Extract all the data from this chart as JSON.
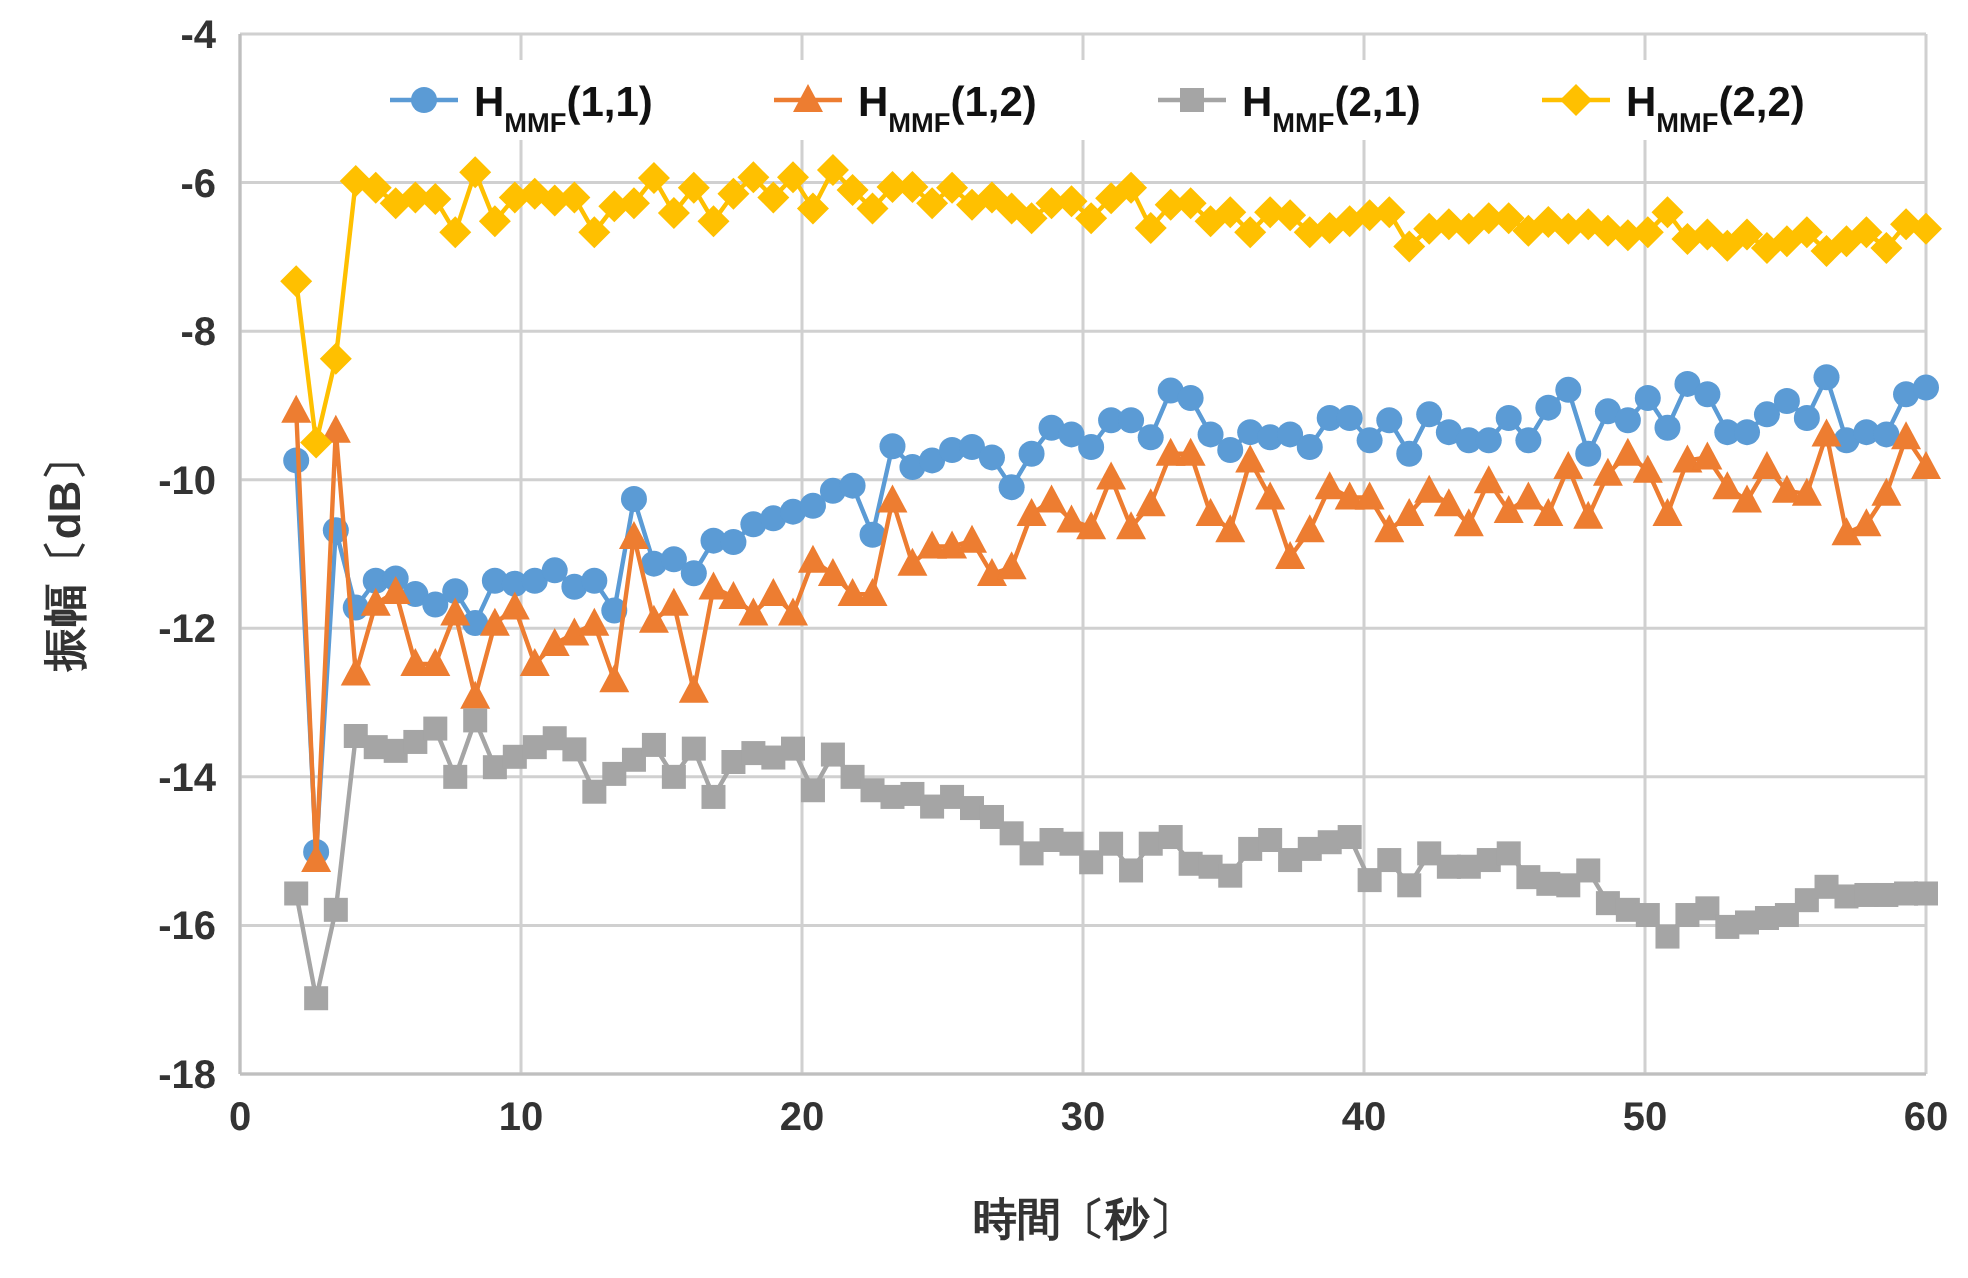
{
  "chart_data": {
    "type": "line",
    "xlabel": "時間〔秒〕",
    "ylabel": "振幅〔dB〕",
    "xlim": [
      0,
      60
    ],
    "xticks": [
      0,
      10,
      20,
      30,
      40,
      50,
      60
    ],
    "ylim": [
      -18,
      -4
    ],
    "yticks": [
      -18,
      -16,
      -14,
      -12,
      -10,
      -8,
      -6,
      -4
    ],
    "grid": true,
    "legend": "top right",
    "line_style": "solid",
    "x": [
      2.0,
      2.71,
      3.41,
      4.12,
      4.83,
      5.54,
      6.24,
      6.95,
      7.66,
      8.37,
      9.07,
      9.78,
      10.49,
      11.2,
      11.9,
      12.61,
      13.32,
      14.02,
      14.73,
      15.44,
      16.15,
      16.85,
      17.56,
      18.27,
      18.98,
      19.68,
      20.39,
      21.1,
      21.8,
      22.51,
      23.22,
      23.93,
      24.63,
      25.34,
      26.05,
      26.76,
      27.46,
      28.17,
      28.88,
      29.59,
      30.29,
      31.0,
      31.71,
      32.41,
      33.12,
      33.83,
      34.54,
      35.24,
      35.95,
      36.66,
      37.37,
      38.07,
      38.78,
      39.49,
      40.2,
      40.9,
      41.61,
      42.32,
      43.02,
      43.73,
      44.44,
      45.15,
      45.85,
      46.56,
      47.27,
      47.98,
      48.68,
      49.39,
      50.1,
      50.8,
      51.51,
      52.22,
      52.93,
      53.63,
      54.34,
      55.05,
      55.76,
      56.46,
      57.17,
      57.88,
      58.59,
      59.29,
      60.0
    ],
    "series": [
      {
        "name": "H$_{MMF}$(1,1)",
        "color": "#5b9bd5",
        "marker": "circle",
        "values": [
          -9.74,
          -15.01,
          -10.68,
          -11.72,
          -11.36,
          -11.33,
          -11.54,
          -11.68,
          -11.5,
          -11.93,
          -11.36,
          -11.4,
          -11.36,
          -11.22,
          -11.44,
          -11.36,
          -11.76,
          -10.26,
          -11.13,
          -11.07,
          -11.26,
          -10.82,
          -10.84,
          -10.6,
          -10.52,
          -10.43,
          -10.35,
          -10.15,
          -10.08,
          -10.74,
          -9.55,
          -9.83,
          -9.74,
          -9.6,
          -9.56,
          -9.7,
          -10.1,
          -9.65,
          -9.3,
          -9.39,
          -9.56,
          -9.2,
          -9.2,
          -9.43,
          -8.8,
          -8.9,
          -9.39,
          -9.6,
          -9.36,
          -9.43,
          -9.39,
          -9.56,
          -9.17,
          -9.17,
          -9.47,
          -9.2,
          -9.65,
          -9.12,
          -9.36,
          -9.47,
          -9.47,
          -9.17,
          -9.47,
          -9.03,
          -8.79,
          -9.65,
          -9.08,
          -9.2,
          -8.9,
          -9.3,
          -8.71,
          -8.85,
          -9.36,
          -9.36,
          -9.12,
          -8.94,
          -9.17,
          -8.62,
          -9.47,
          -9.36,
          -9.39,
          -8.85,
          -8.76
        ]
      },
      {
        "name": "H$_{MMF}$(1,2)",
        "color": "#ed7d31",
        "marker": "triangle",
        "values": [
          -9.07,
          -15.12,
          -9.34,
          -12.61,
          -11.67,
          -11.51,
          -12.48,
          -12.48,
          -11.8,
          -12.92,
          -11.94,
          -11.72,
          -12.48,
          -12.21,
          -12.07,
          -11.94,
          -12.7,
          -10.77,
          -11.9,
          -11.67,
          -12.84,
          -11.45,
          -11.58,
          -11.8,
          -11.54,
          -11.8,
          -11.09,
          -11.27,
          -11.54,
          -11.54,
          -10.28,
          -11.13,
          -10.9,
          -10.9,
          -10.82,
          -11.27,
          -11.18,
          -10.46,
          -10.28,
          -10.55,
          -10.64,
          -9.97,
          -10.64,
          -10.33,
          -9.65,
          -9.65,
          -10.46,
          -10.68,
          -9.74,
          -10.24,
          -11.04,
          -10.68,
          -10.1,
          -10.24,
          -10.24,
          -10.68,
          -10.46,
          -10.15,
          -10.33,
          -10.6,
          -10.02,
          -10.42,
          -10.24,
          -10.46,
          -9.83,
          -10.5,
          -9.92,
          -9.65,
          -9.88,
          -10.46,
          -9.74,
          -9.7,
          -10.1,
          -10.28,
          -9.83,
          -10.15,
          -10.19,
          -9.39,
          -10.72,
          -10.6,
          -10.19,
          -9.43,
          -9.83
        ]
      },
      {
        "name": "H$_{MMF}$(2,1)",
        "color": "#a5a5a5",
        "marker": "square",
        "values": [
          -15.57,
          -16.98,
          -15.79,
          -13.45,
          -13.6,
          -13.65,
          -13.53,
          -13.35,
          -14.0,
          -13.24,
          -13.87,
          -13.73,
          -13.6,
          -13.48,
          -13.63,
          -14.2,
          -13.96,
          -13.77,
          -13.57,
          -14.0,
          -13.62,
          -14.27,
          -13.8,
          -13.68,
          -13.74,
          -13.62,
          -14.18,
          -13.7,
          -14.0,
          -14.18,
          -14.27,
          -14.23,
          -14.4,
          -14.27,
          -14.42,
          -14.54,
          -14.76,
          -15.03,
          -14.85,
          -14.9,
          -15.15,
          -14.9,
          -15.26,
          -14.9,
          -14.81,
          -15.17,
          -15.21,
          -15.33,
          -14.97,
          -14.85,
          -15.12,
          -14.97,
          -14.88,
          -14.81,
          -15.39,
          -15.12,
          -15.46,
          -15.03,
          -15.21,
          -15.21,
          -15.12,
          -15.03,
          -15.35,
          -15.44,
          -15.46,
          -15.26,
          -15.7,
          -15.79,
          -15.86,
          -16.15,
          -15.86,
          -15.77,
          -16.02,
          -15.96,
          -15.9,
          -15.86,
          -15.66,
          -15.48,
          -15.61,
          -15.59,
          -15.59,
          -15.57,
          -15.57
        ]
      },
      {
        "name": "H$_{MMF}$(2,2)",
        "color": "#ffc000",
        "marker": "diamond",
        "values": [
          -7.33,
          -9.5,
          -8.37,
          -5.98,
          -6.07,
          -6.28,
          -6.2,
          -6.22,
          -6.67,
          -5.86,
          -6.52,
          -6.2,
          -6.15,
          -6.24,
          -6.2,
          -6.67,
          -6.32,
          -6.28,
          -5.94,
          -6.41,
          -6.07,
          -6.52,
          -6.15,
          -5.93,
          -6.2,
          -5.93,
          -6.35,
          -5.83,
          -6.1,
          -6.35,
          -6.06,
          -6.06,
          -6.28,
          -6.07,
          -6.3,
          -6.2,
          -6.35,
          -6.48,
          -6.28,
          -6.25,
          -6.48,
          -6.21,
          -6.07,
          -6.61,
          -6.3,
          -6.28,
          -6.52,
          -6.4,
          -6.67,
          -6.4,
          -6.44,
          -6.67,
          -6.61,
          -6.52,
          -6.44,
          -6.4,
          -6.86,
          -6.62,
          -6.56,
          -6.62,
          -6.48,
          -6.48,
          -6.65,
          -6.53,
          -6.62,
          -6.56,
          -6.65,
          -6.71,
          -6.67,
          -6.4,
          -6.76,
          -6.7,
          -6.85,
          -6.7,
          -6.88,
          -6.79,
          -6.67,
          -6.92,
          -6.79,
          -6.67,
          -6.88,
          -6.56,
          -6.62
        ]
      }
    ]
  }
}
